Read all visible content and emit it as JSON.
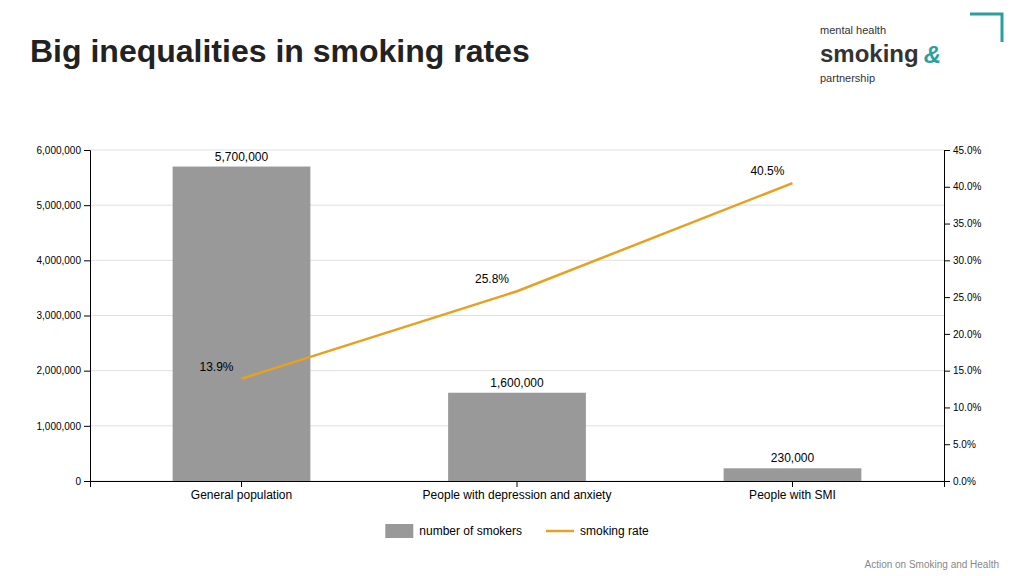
{
  "chart_data": {
    "type": "bar",
    "title": "Big inequalities in smoking rates",
    "categories": [
      "General population",
      "People with depression and anxiety",
      "People with SMI"
    ],
    "series": [
      {
        "name": "number of smokers",
        "type": "bar",
        "color": "#999999",
        "values": [
          5700000,
          1600000,
          230000
        ],
        "value_labels": [
          "5,700,000",
          "1,600,000",
          "230,000"
        ]
      },
      {
        "name": "smoking rate",
        "type": "line",
        "color": "#E8A020",
        "axis": "y2",
        "values": [
          13.9,
          25.8,
          40.5
        ],
        "value_labels": [
          "13.9%",
          "25.8%",
          "40.5%"
        ]
      }
    ],
    "ylim": [
      0,
      6000000
    ],
    "yticks": [
      0,
      {
        "value": 1000000,
        "label": "1,000,000"
      },
      {
        "value": 2000000,
        "label": "2,000,000"
      },
      {
        "value": 3000000,
        "label": "3,000,000"
      },
      {
        "value": 4000000,
        "label": "4,000,000"
      },
      {
        "value": 5000000,
        "label": "5,000,000"
      },
      {
        "value": 6000000,
        "label": "6,000,000"
      }
    ],
    "y2lim": [
      0,
      45.0
    ],
    "y2ticks": [
      {
        "value": 0.0,
        "label": "0.0%"
      },
      {
        "value": 5.0,
        "label": "5.0%"
      },
      {
        "value": 10.0,
        "label": "10.0%"
      },
      {
        "value": 15.0,
        "label": "15.0%"
      },
      {
        "value": 20.0,
        "label": "20.0%"
      },
      {
        "value": 25.0,
        "label": "25.0%"
      },
      {
        "value": 30.0,
        "label": "30.0%"
      },
      {
        "value": 35.0,
        "label": "35.0%"
      },
      {
        "value": 40.0,
        "label": "40.0%"
      },
      {
        "value": 45.0,
        "label": "45.0%"
      }
    ],
    "grid": true,
    "legend": "bottom",
    "data_labels": true,
    "logo": {
      "texts": [
        "mental health",
        "smoking",
        "&",
        "partnership"
      ],
      "color": "#2B9E9E"
    },
    "source": "Action on Smoking and Health"
  }
}
